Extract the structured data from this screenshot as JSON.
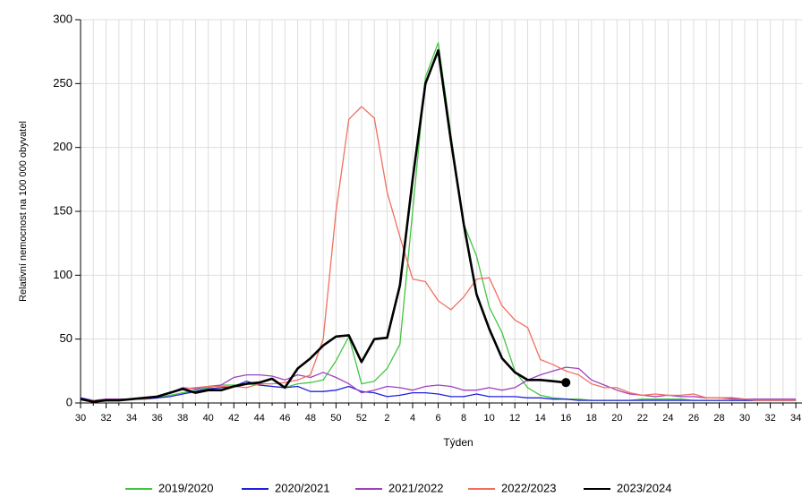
{
  "chart_data": {
    "type": "line",
    "x_label": "Týden",
    "y_label": "Relativní nemocnost na 100 000 obyvatel",
    "categories": [
      "30",
      null,
      "32",
      null,
      "34",
      null,
      "36",
      null,
      "38",
      null,
      "40",
      null,
      "42",
      null,
      "44",
      null,
      "46",
      null,
      "48",
      null,
      "50",
      null,
      "52",
      null,
      "2",
      null,
      "4",
      null,
      "6",
      null,
      "8",
      null,
      "10",
      null,
      "12",
      null,
      "14",
      null,
      "16",
      null,
      "18",
      null,
      "20",
      null,
      "22",
      null,
      "24",
      null,
      "26",
      null,
      "28",
      null,
      "30",
      null,
      "32",
      null,
      "34"
    ],
    "ylim": [
      0,
      300
    ],
    "yticks": [
      0,
      50,
      100,
      150,
      200,
      250,
      300
    ],
    "grid": true,
    "series": [
      {
        "name": "2019/2020",
        "color": "#44c444",
        "values": [
          3,
          1,
          2,
          2,
          3,
          3,
          4,
          6,
          8,
          10,
          12,
          14,
          14,
          15,
          14,
          13,
          12,
          15,
          16,
          18,
          33,
          52,
          15,
          17,
          27,
          46,
          150,
          255,
          282,
          210,
          140,
          115,
          75,
          55,
          25,
          12,
          6,
          4,
          3,
          3,
          2,
          2,
          2,
          2,
          3,
          3,
          3,
          3,
          2,
          2,
          2,
          2,
          2,
          2,
          2,
          2,
          2
        ]
      },
      {
        "name": "2020/2021",
        "color": "#2020e0",
        "values": [
          4,
          2,
          2,
          2,
          3,
          3,
          4,
          5,
          7,
          9,
          11,
          12,
          13,
          17,
          14,
          13,
          12,
          13,
          9,
          9,
          10,
          13,
          9,
          8,
          5,
          6,
          8,
          8,
          7,
          5,
          5,
          7,
          5,
          5,
          5,
          4,
          4,
          3,
          3,
          2,
          2,
          2,
          2,
          2,
          2,
          2,
          2,
          2,
          2,
          2,
          2,
          2,
          2,
          2,
          2,
          2,
          2
        ]
      },
      {
        "name": "2021/2022",
        "color": "#a040c0",
        "values": [
          3,
          2,
          3,
          3,
          3,
          4,
          5,
          8,
          12,
          11,
          13,
          14,
          20,
          22,
          22,
          21,
          18,
          22,
          20,
          24,
          20,
          15,
          8,
          10,
          13,
          12,
          10,
          13,
          14,
          13,
          10,
          10,
          12,
          10,
          12,
          18,
          22,
          25,
          28,
          27,
          18,
          14,
          10,
          7,
          6,
          5,
          6,
          5,
          5,
          4,
          4,
          4,
          3,
          3,
          3,
          3,
          3
        ]
      },
      {
        "name": "2022/2023",
        "color": "#f07060",
        "values": [
          3,
          2,
          2,
          2,
          3,
          3,
          5,
          8,
          11,
          12,
          13,
          13,
          13,
          12,
          15,
          15,
          16,
          18,
          22,
          50,
          150,
          222,
          232,
          223,
          165,
          130,
          97,
          95,
          80,
          73,
          83,
          97,
          98,
          76,
          65,
          59,
          34,
          30,
          25,
          22,
          15,
          12,
          12,
          8,
          6,
          7,
          6,
          6,
          7,
          4,
          4,
          3,
          3,
          2,
          2,
          2,
          2
        ]
      },
      {
        "name": "2023/2024",
        "color": "#000000",
        "values": [
          3,
          1,
          2,
          2,
          3,
          4,
          5,
          8,
          11,
          8,
          10,
          10,
          13,
          15,
          16,
          19,
          12,
          27,
          35,
          45,
          52,
          53,
          32,
          50,
          51,
          92,
          175,
          250,
          276,
          205,
          140,
          85,
          58,
          35,
          24,
          18,
          18,
          17,
          16,
          null,
          null,
          null,
          null,
          null,
          null,
          null,
          null,
          null,
          null,
          null,
          null,
          null,
          null,
          null,
          null,
          null,
          null
        ]
      }
    ]
  }
}
